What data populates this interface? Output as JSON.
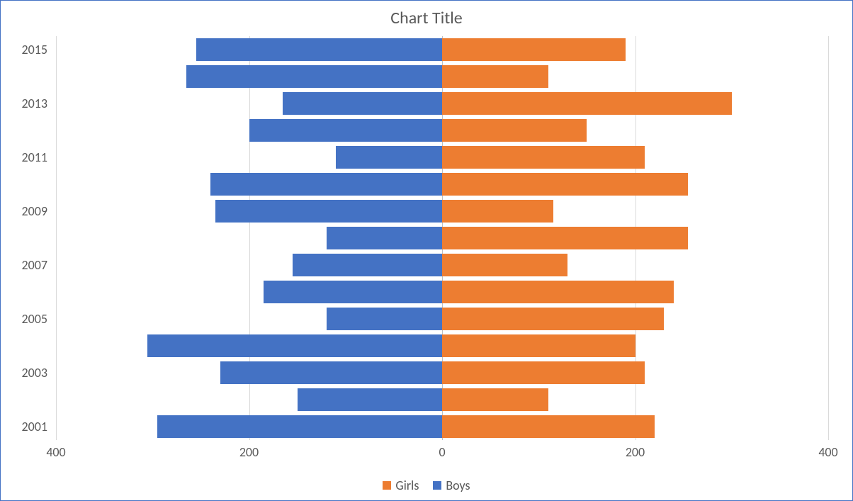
{
  "chart": {
    "type": "diverging-bar-horizontal",
    "title": "Chart Title",
    "title_fontsize": 24,
    "title_color": "#595959",
    "frame_border_color": "#4472c4",
    "background_color": "#ffffff",
    "grid_color": "#d9d9d9",
    "baseline_color": "#bfbfbf",
    "axis_label_color": "#595959",
    "axis_label_fontsize": 18,
    "x_axis": {
      "min": -400,
      "max": 400,
      "ticks": [
        -400,
        -200,
        0,
        200,
        400
      ],
      "tick_labels": [
        "400",
        "200",
        "0",
        "200",
        "400"
      ]
    },
    "y_axis": {
      "categories": [
        "2001",
        "2002",
        "2003",
        "2004",
        "2005",
        "2006",
        "2007",
        "2008",
        "2009",
        "2010",
        "2011",
        "2012",
        "2013",
        "2014",
        "2015"
      ],
      "visible_labels": [
        "2001",
        "2003",
        "2005",
        "2007",
        "2009",
        "2011",
        "2013",
        "2015"
      ]
    },
    "bar_gap_ratio": 0.18,
    "series": [
      {
        "name": "Girls",
        "color": "#ed7d31",
        "direction": "right",
        "values_by_category": {
          "2001": 220,
          "2002": 110,
          "2003": 210,
          "2004": 200,
          "2005": 230,
          "2006": 240,
          "2007": 130,
          "2008": 255,
          "2009": 115,
          "2010": 255,
          "2011": 210,
          "2012": 150,
          "2013": 300,
          "2014": 110,
          "2015": 190
        }
      },
      {
        "name": "Boys",
        "color": "#4472c4",
        "direction": "left",
        "values_by_category": {
          "2001": 295,
          "2002": 150,
          "2003": 230,
          "2004": 305,
          "2005": 120,
          "2006": 185,
          "2007": 155,
          "2008": 120,
          "2009": 235,
          "2010": 240,
          "2011": 110,
          "2012": 200,
          "2013": 165,
          "2014": 265,
          "2015": 255
        }
      }
    ],
    "legend": {
      "position": "bottom",
      "items": [
        "Girls",
        "Boys"
      ]
    }
  }
}
